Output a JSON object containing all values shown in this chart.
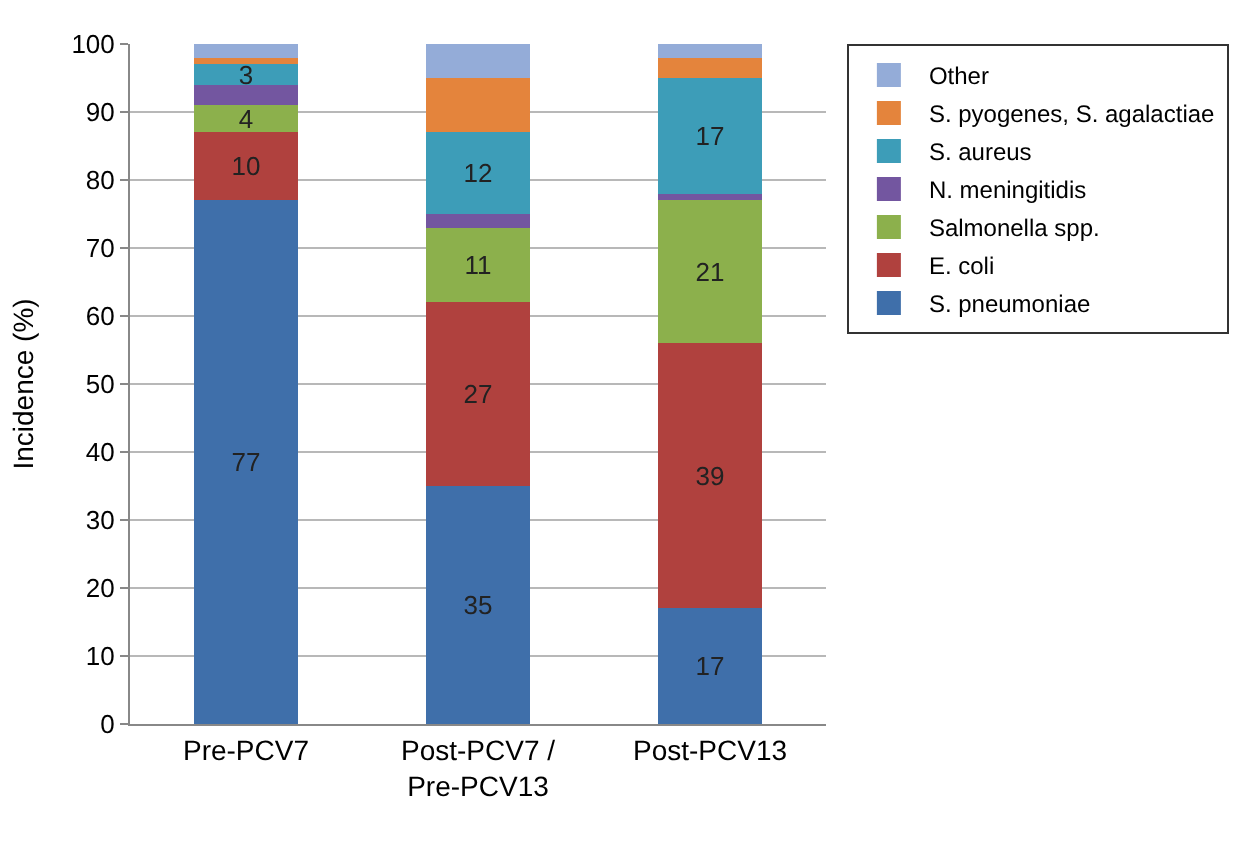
{
  "chart_data": {
    "type": "bar",
    "stacked": true,
    "ylabel": "Incidence (%)",
    "categories": [
      "Pre-PCV7",
      "Post-PCV7 / Pre-PCV13",
      "Post-PCV13"
    ],
    "ylim": [
      0,
      100
    ],
    "yticks": [
      0,
      10,
      20,
      30,
      40,
      50,
      60,
      70,
      80,
      90,
      100
    ],
    "grid": "y",
    "legend": "right",
    "series": [
      {
        "name": "S. pneumoniae",
        "color": "#3f6faa",
        "values": [
          77,
          35,
          17
        ],
        "value_labels": [
          "77",
          "35",
          "17"
        ]
      },
      {
        "name": "E. coli",
        "color": "#b0413e",
        "values": [
          10,
          27,
          39
        ],
        "value_labels": [
          "10",
          "27",
          "39"
        ]
      },
      {
        "name": "Salmonella spp.",
        "color": "#8cb04c",
        "values": [
          4,
          11,
          21
        ],
        "value_labels": [
          "4",
          "11",
          "21"
        ]
      },
      {
        "name": "N. meningitidis",
        "color": "#7356a0",
        "values": [
          3,
          2,
          1
        ],
        "value_labels": [
          null,
          null,
          null
        ]
      },
      {
        "name": "S. aureus",
        "color": "#3d9db8",
        "values": [
          3,
          12,
          17
        ],
        "value_labels": [
          "3",
          "12",
          "17"
        ]
      },
      {
        "name": "S. pyogenes, S. agalactiae",
        "color": "#e4843c",
        "values": [
          1,
          8,
          3
        ],
        "value_labels": [
          null,
          null,
          null
        ]
      },
      {
        "name": "Other",
        "color": "#94acd8",
        "values": [
          2,
          5,
          2
        ],
        "value_labels": [
          null,
          null,
          null
        ]
      }
    ]
  }
}
